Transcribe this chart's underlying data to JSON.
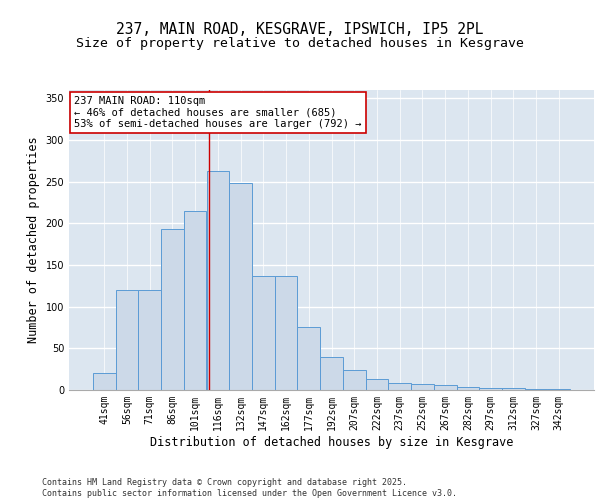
{
  "title": "237, MAIN ROAD, KESGRAVE, IPSWICH, IP5 2PL",
  "subtitle": "Size of property relative to detached houses in Kesgrave",
  "xlabel": "Distribution of detached houses by size in Kesgrave",
  "ylabel": "Number of detached properties",
  "categories": [
    "41sqm",
    "56sqm",
    "71sqm",
    "86sqm",
    "101sqm",
    "116sqm",
    "132sqm",
    "147sqm",
    "162sqm",
    "177sqm",
    "192sqm",
    "207sqm",
    "222sqm",
    "237sqm",
    "252sqm",
    "267sqm",
    "282sqm",
    "297sqm",
    "312sqm",
    "327sqm",
    "342sqm"
  ],
  "hist_values": [
    20,
    120,
    120,
    193,
    215,
    263,
    248,
    137,
    137,
    76,
    40,
    24,
    13,
    9,
    7,
    6,
    4,
    3,
    2,
    1,
    1
  ],
  "bar_color": "#ccd9e8",
  "bar_edge_color": "#5b9bd5",
  "vline_color": "#cc0000",
  "annotation_text": "237 MAIN ROAD: 110sqm\n← 46% of detached houses are smaller (685)\n53% of semi-detached houses are larger (792) →",
  "annotation_box_color": "#ffffff",
  "annotation_box_edge": "#cc0000",
  "ylim": [
    0,
    360
  ],
  "yticks": [
    0,
    50,
    100,
    150,
    200,
    250,
    300,
    350
  ],
  "background_color": "#dce6f0",
  "grid_color": "#ffffff",
  "footer_text": "Contains HM Land Registry data © Crown copyright and database right 2025.\nContains public sector information licensed under the Open Government Licence v3.0.",
  "title_fontsize": 10.5,
  "subtitle_fontsize": 9.5,
  "axis_label_fontsize": 8.5,
  "tick_fontsize": 7,
  "annotation_fontsize": 7.5,
  "footer_fontsize": 6
}
